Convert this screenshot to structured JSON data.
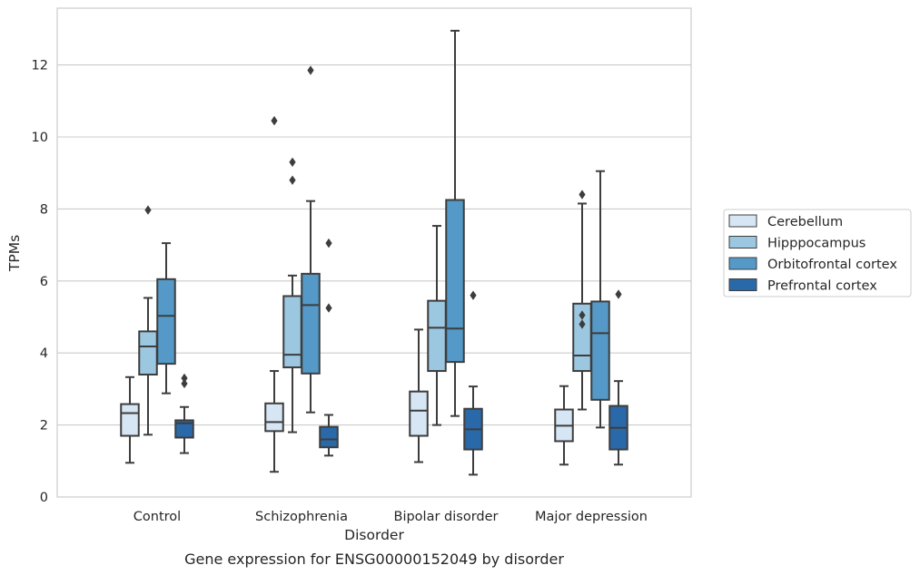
{
  "chart_data": {
    "type": "box",
    "xlabel": "Disorder",
    "ylabel": "TPMs",
    "caption": "Gene expression for ENSG00000152049 by disorder",
    "ylim": [
      0,
      13.5
    ],
    "yticks": [
      0,
      2,
      4,
      6,
      8,
      10,
      12
    ],
    "grid": "horizontal",
    "legend_position": "right",
    "categories": [
      "Control",
      "Schizophrenia",
      "Bipolar disorder",
      "Major depression"
    ],
    "series": [
      {
        "name": "Cerebellum",
        "color": "#d6e6f4",
        "boxes": [
          {
            "whisker_low": 0.95,
            "q1": 1.7,
            "median": 2.33,
            "q3": 2.58,
            "whisker_high": 3.33,
            "outliers": []
          },
          {
            "whisker_low": 0.7,
            "q1": 1.83,
            "median": 2.08,
            "q3": 2.6,
            "whisker_high": 3.5,
            "outliers": [
              10.45
            ]
          },
          {
            "whisker_low": 0.97,
            "q1": 1.7,
            "median": 2.4,
            "q3": 2.93,
            "whisker_high": 4.65,
            "outliers": []
          },
          {
            "whisker_low": 0.9,
            "q1": 1.55,
            "median": 1.98,
            "q3": 2.43,
            "whisker_high": 3.08,
            "outliers": []
          }
        ]
      },
      {
        "name": "Hipppocampus",
        "color": "#9bc7e0",
        "boxes": [
          {
            "whisker_low": 1.73,
            "q1": 3.4,
            "median": 4.18,
            "q3": 4.6,
            "whisker_high": 5.53,
            "outliers": [
              7.97
            ]
          },
          {
            "whisker_low": 1.8,
            "q1": 3.6,
            "median": 3.95,
            "q3": 5.58,
            "whisker_high": 6.15,
            "outliers": [
              9.3,
              8.8
            ]
          },
          {
            "whisker_low": 2.0,
            "q1": 3.5,
            "median": 4.7,
            "q3": 5.45,
            "whisker_high": 7.53,
            "outliers": []
          },
          {
            "whisker_low": 2.43,
            "q1": 3.5,
            "median": 3.93,
            "q3": 5.37,
            "whisker_high": 8.15,
            "outliers": [
              8.4,
              5.05,
              4.8
            ]
          }
        ]
      },
      {
        "name": "Orbitofrontal cortex",
        "color": "#5499c7",
        "boxes": [
          {
            "whisker_low": 2.88,
            "q1": 3.7,
            "median": 5.03,
            "q3": 6.05,
            "whisker_high": 7.05,
            "outliers": []
          },
          {
            "whisker_low": 2.35,
            "q1": 3.43,
            "median": 5.33,
            "q3": 6.2,
            "whisker_high": 8.22,
            "outliers": [
              11.85
            ]
          },
          {
            "whisker_low": 2.25,
            "q1": 3.75,
            "median": 4.68,
            "q3": 8.25,
            "whisker_high": 12.95,
            "outliers": []
          },
          {
            "whisker_low": 1.93,
            "q1": 2.7,
            "median": 4.55,
            "q3": 5.43,
            "whisker_high": 9.05,
            "outliers": []
          }
        ]
      },
      {
        "name": "Prefrontal cortex",
        "color": "#2a69a9",
        "boxes": [
          {
            "whisker_low": 1.22,
            "q1": 1.65,
            "median": 2.05,
            "q3": 2.13,
            "whisker_high": 2.5,
            "outliers": [
              3.3,
              3.15
            ]
          },
          {
            "whisker_low": 1.15,
            "q1": 1.38,
            "median": 1.6,
            "q3": 1.95,
            "whisker_high": 2.28,
            "outliers": [
              7.05,
              5.25
            ]
          },
          {
            "whisker_low": 0.62,
            "q1": 1.32,
            "median": 1.88,
            "q3": 2.45,
            "whisker_high": 3.07,
            "outliers": [
              5.6
            ]
          },
          {
            "whisker_low": 0.9,
            "q1": 1.32,
            "median": 1.92,
            "q3": 2.53,
            "whisker_high": 3.22,
            "outliers": [
              5.63
            ]
          }
        ]
      }
    ]
  }
}
